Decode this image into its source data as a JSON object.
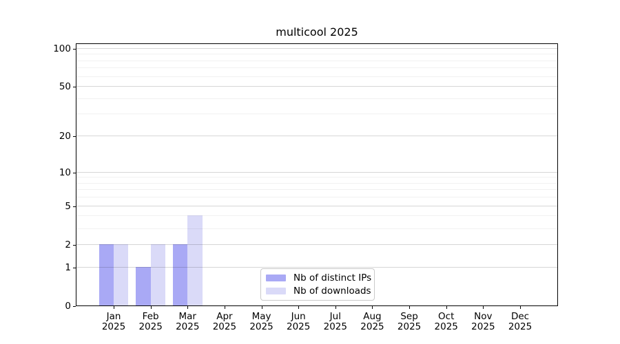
{
  "chart_data": {
    "type": "bar",
    "title": "multicool 2025",
    "categories": [
      "Jan",
      "Feb",
      "Mar",
      "Apr",
      "May",
      "Jun",
      "Jul",
      "Aug",
      "Sep",
      "Oct",
      "Nov",
      "Dec"
    ],
    "category_year": "2025",
    "series": [
      {
        "name": "Nb of distinct IPs",
        "color": "#a9a9f5",
        "values": [
          2,
          1,
          2,
          0,
          0,
          0,
          0,
          0,
          0,
          0,
          0,
          0
        ]
      },
      {
        "name": "Nb of downloads",
        "color": "#dadaf8",
        "values": [
          2,
          2,
          4,
          0,
          0,
          0,
          0,
          0,
          0,
          0,
          0,
          0
        ]
      }
    ],
    "yscale": "log1p",
    "ylim": [
      0,
      110
    ],
    "yticks": {
      "major": [
        0,
        1,
        2,
        5,
        10,
        20,
        50,
        100
      ],
      "major_labels": [
        "0",
        "1",
        "2",
        "5",
        "10",
        "20",
        "50",
        "100"
      ],
      "minor": [
        3,
        4,
        6,
        7,
        8,
        9,
        30,
        40,
        60,
        70,
        80,
        90
      ]
    },
    "grid": true,
    "legend_position": "lower center"
  }
}
